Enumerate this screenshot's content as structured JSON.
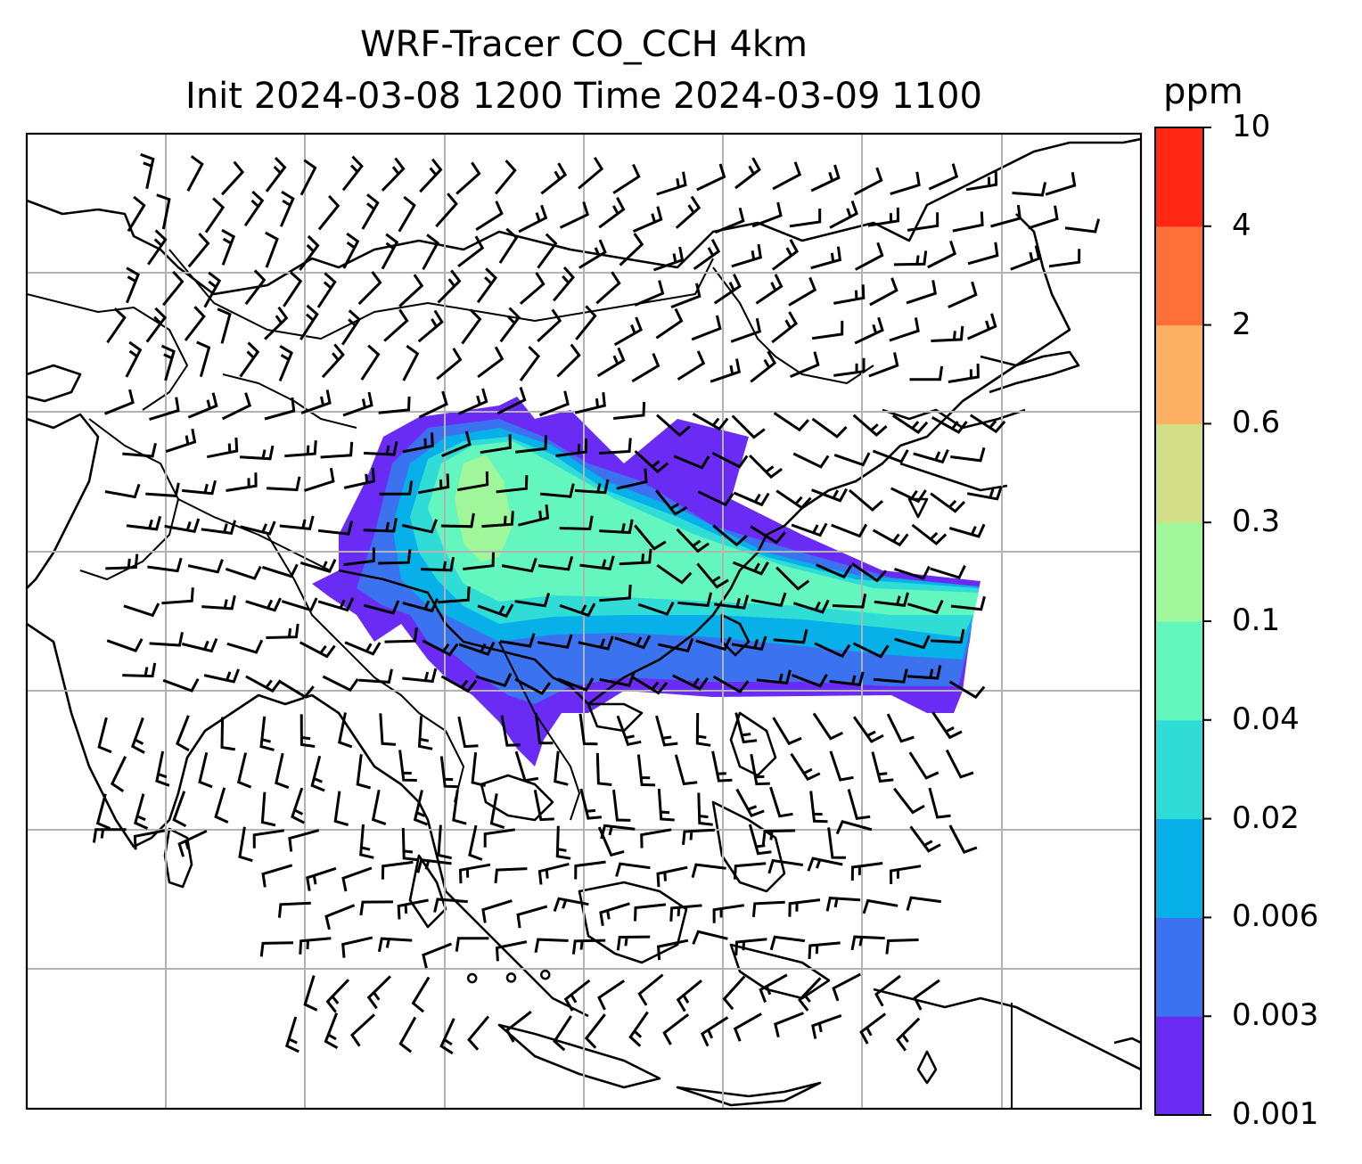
{
  "title_line1": "WRF-Tracer CO_CCH 4km",
  "title_line2": "Init 2024-03-08 1200 Time 2024-03-09 1100",
  "colorbar": {
    "unit": "ppm",
    "levels": [
      "0.001",
      "0.003",
      "0.006",
      "0.02",
      "0.04",
      "0.1",
      "0.3",
      "0.6",
      "2",
      "4",
      "10"
    ],
    "colors": [
      "#6a2cf5",
      "#3b72f0",
      "#08b0ea",
      "#2fdcd6",
      "#63f7bf",
      "#a0f79a",
      "#d2df86",
      "#fcb062",
      "#ff7038",
      "#ff2815"
    ]
  },
  "map": {
    "field": "CO_CCH tracer concentration",
    "overlay": "wind barbs",
    "graticule": true,
    "coastlines": true,
    "country_borders": true
  }
}
